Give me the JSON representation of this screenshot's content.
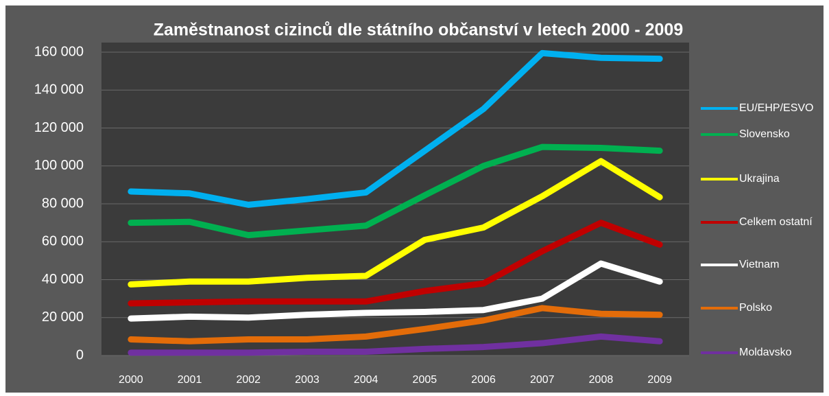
{
  "chart_data": {
    "type": "line",
    "title": "Zaměstnanost cizinců dle státního občanství v letech 2000 - 2009",
    "categories": [
      "2000",
      "2001",
      "2002",
      "2003",
      "2004",
      "2005",
      "2006",
      "2007",
      "2008",
      "2009"
    ],
    "series": [
      {
        "name": "EU/EHP/ESVO",
        "color": "#00b0f0",
        "values": [
          86500,
          85500,
          79500,
          82500,
          86000,
          108000,
          130000,
          159500,
          157000,
          156500
        ]
      },
      {
        "name": "Slovensko",
        "color": "#00b050",
        "values": [
          70000,
          70500,
          63500,
          66000,
          68500,
          84500,
          100000,
          110000,
          109500,
          108000
        ]
      },
      {
        "name": "Ukrajina",
        "color": "#ffff00",
        "values": [
          37500,
          39000,
          39000,
          41000,
          42000,
          61000,
          67500,
          84000,
          102500,
          83500
        ]
      },
      {
        "name": "Celkem ostatní",
        "color": "#c00000",
        "values": [
          27500,
          28000,
          28500,
          28500,
          28500,
          34000,
          38000,
          55000,
          70000,
          58500
        ]
      },
      {
        "name": "Vietnam",
        "color": "#ffffff",
        "values": [
          19500,
          20500,
          20000,
          21500,
          22500,
          23000,
          24000,
          30000,
          48500,
          39000
        ]
      },
      {
        "name": "Polsko",
        "color": "#e36c09",
        "values": [
          8500,
          7500,
          8500,
          8500,
          10000,
          14000,
          18500,
          25000,
          22000,
          21500
        ]
      },
      {
        "name": "Moldavsko",
        "color": "#7030a0",
        "values": [
          1500,
          1500,
          1500,
          2000,
          2000,
          3500,
          4500,
          6500,
          10000,
          7500
        ]
      }
    ],
    "ylim": [
      0,
      160000
    ],
    "yticks": [
      0,
      {
        "value": 20000,
        "label": "20 000"
      },
      {
        "value": 40000,
        "label": "40 000"
      },
      {
        "value": 60000,
        "label": "60 000"
      },
      {
        "value": 80000,
        "label": "80 000"
      },
      {
        "value": 100000,
        "label": "100 000"
      },
      {
        "value": 120000,
        "label": "120 000"
      },
      {
        "value": 140000,
        "label": "140 000"
      },
      {
        "value": 160000,
        "label": "160 000"
      }
    ],
    "grid": true,
    "legend": "right"
  }
}
